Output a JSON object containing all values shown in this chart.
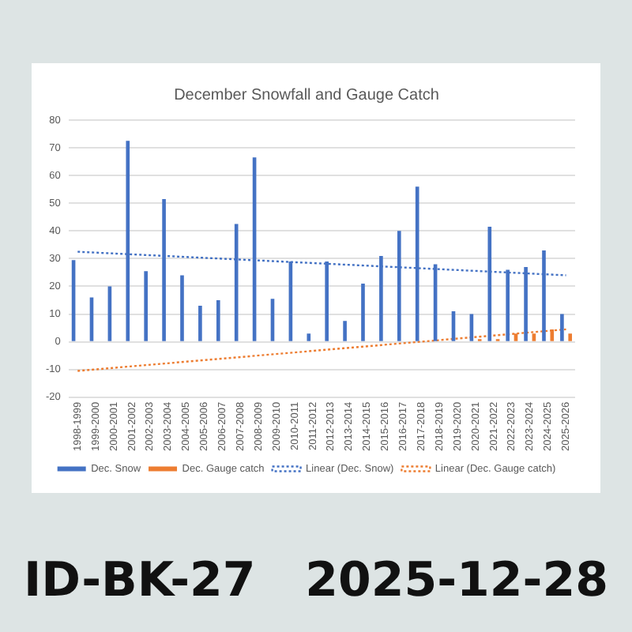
{
  "chart_data": {
    "type": "bar",
    "title": "December Snowfall and Gauge Catch",
    "categories": [
      "1998-1999",
      "1999-2000",
      "2000-2001",
      "2001-2002",
      "2002-2003",
      "2003-2004",
      "2004-2005",
      "2005-2006",
      "2006-2007",
      "2007-2008",
      "2008-2009",
      "2009-2010",
      "2010-2011",
      "2011-2012",
      "2012-2013",
      "2013-2014",
      "2014-2015",
      "2015-2016",
      "2016-2017",
      "2017-2018",
      "2018-2019",
      "2019-2020",
      "2020-2021",
      "2021-2022",
      "2022-2023",
      "2023-2024",
      "2024-2025",
      "2025-2026"
    ],
    "series": [
      {
        "name": "Dec. Snow",
        "color": "#4472c4",
        "values": [
          29.5,
          16,
          20,
          72.5,
          25.5,
          51.5,
          24,
          13,
          15,
          42.5,
          66.5,
          15.5,
          29,
          3,
          29,
          7.5,
          21,
          31,
          40,
          56,
          28,
          11,
          10,
          41.5,
          26,
          27,
          33,
          10
        ]
      },
      {
        "name": "Dec. Gauge catch",
        "color": "#ed7d31",
        "values": [
          null,
          null,
          null,
          null,
          null,
          null,
          null,
          null,
          null,
          null,
          null,
          null,
          null,
          null,
          null,
          null,
          null,
          null,
          null,
          null,
          null,
          null,
          1,
          1,
          3,
          3,
          4.5,
          3
        ]
      },
      {
        "name": "Linear (Dec. Snow)",
        "type": "line",
        "color": "#4472c4",
        "line_style": "dotted",
        "x": [
          "1998-1999",
          "2025-2026"
        ],
        "values": [
          32.5,
          24
        ]
      },
      {
        "name": "Linear (Dec. Gauge catch)",
        "type": "line",
        "color": "#ed7d31",
        "line_style": "dotted",
        "x": [
          "1998-1999",
          "2025-2026"
        ],
        "values": [
          -10.5,
          4.5
        ]
      }
    ],
    "ylim": [
      -20,
      80
    ],
    "yticks": [
      -20,
      -10,
      0,
      10,
      20,
      30,
      40,
      50,
      60,
      70,
      80
    ],
    "grid": "y",
    "legend": "bottom",
    "marker": "none",
    "annotations": [
      "ID-BK-27   2025-12-28"
    ]
  }
}
